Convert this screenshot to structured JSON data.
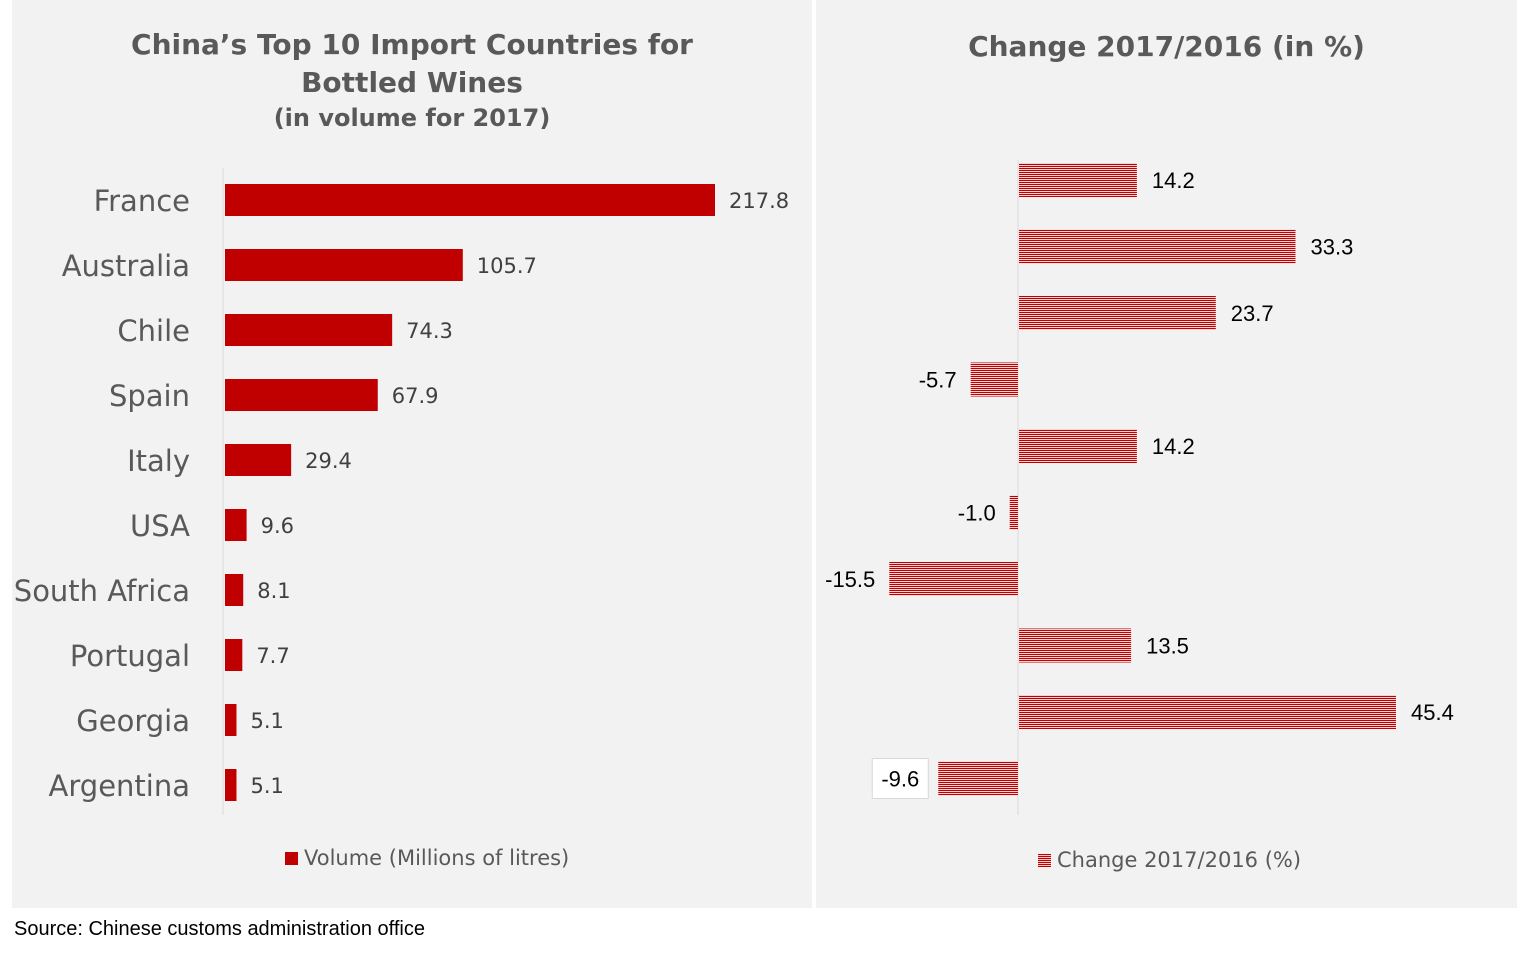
{
  "left_chart": {
    "title": "China’s Top 10 Import Countries for Bottled Wines",
    "subtitle": "(in volume for 2017)",
    "legend": "Volume (Millions of litres)"
  },
  "right_chart": {
    "title": "Change 2017/2016 (in %)",
    "legend": "Change 2017/2016 (%)"
  },
  "source": "Source: Chinese customs administration office",
  "colors": {
    "bar": "#c00000",
    "panel_bg": "#f2f2f2",
    "text": "#595959"
  },
  "chart_data": [
    {
      "type": "bar",
      "orientation": "horizontal",
      "title": "China’s Top 10 Import Countries for Bottled Wines",
      "subtitle": "(in volume for 2017)",
      "categories": [
        "France",
        "Australia",
        "Chile",
        "Spain",
        "Italy",
        "USA",
        "South Africa",
        "Portugal",
        "Georgia",
        "Argentina"
      ],
      "series": [
        {
          "name": "Volume (Millions of litres)",
          "values": [
            217.8,
            105.7,
            74.3,
            67.9,
            29.4,
            9.6,
            8.1,
            7.7,
            5.1,
            5.1
          ]
        }
      ],
      "data_labels": [
        "217.8",
        "105.7",
        "74.3",
        "67.9",
        "29.4",
        "9.6",
        "8.1",
        "7.7",
        "5.1",
        "5.1"
      ],
      "legend_position": "bottom",
      "grid": false
    },
    {
      "type": "bar",
      "orientation": "horizontal",
      "title": "Change 2017/2016 (in %)",
      "categories": [
        "France",
        "Australia",
        "Chile",
        "Spain",
        "Italy",
        "USA",
        "South Africa",
        "Portugal",
        "Georgia",
        "Argentina"
      ],
      "series": [
        {
          "name": "Change 2017/2016 (%)",
          "values": [
            14.2,
            33.3,
            23.7,
            -5.7,
            14.2,
            -1.0,
            -15.5,
            13.5,
            45.4,
            -9.6
          ]
        }
      ],
      "data_labels": [
        "14.2",
        "33.3",
        "23.7",
        "-5.7",
        "14.2",
        "-1.0",
        "-15.5",
        "13.5",
        "45.4",
        "-9.6"
      ],
      "legend_position": "bottom",
      "grid": false,
      "pattern": "horizontal-stripes"
    }
  ]
}
